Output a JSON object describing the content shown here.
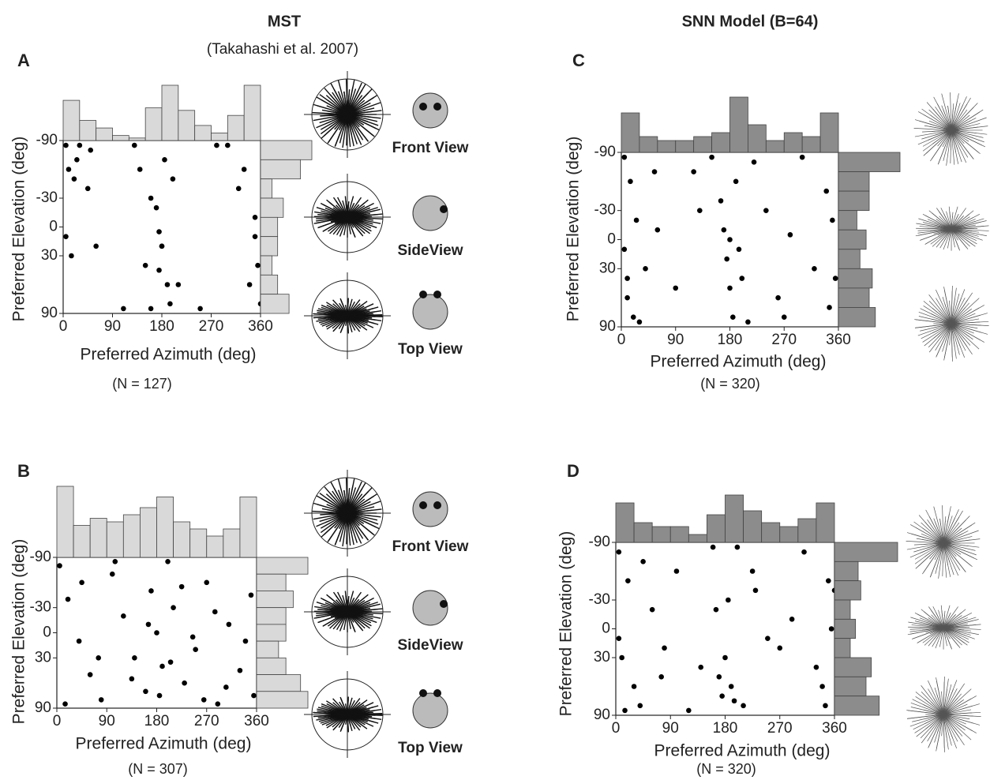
{
  "column_titles": [
    {
      "title": "MST",
      "subtitle": "(Takahashi et al. 2007)"
    },
    {
      "title": "SNN Model (B=64)"
    }
  ],
  "chart_data": [
    {
      "type": "scatter",
      "letter": "A",
      "xlabel": "Preferred Azimuth (deg)",
      "ylabel": "Preferred Elevation (deg)",
      "n_label": "(N = 127)",
      "xlim": [
        0,
        360
      ],
      "ylim": [
        -90,
        90
      ],
      "xticks": [
        0,
        90,
        180,
        270,
        360
      ],
      "yticks": [
        -90,
        -30,
        0,
        30,
        90
      ],
      "x": [
        5,
        10,
        20,
        25,
        30,
        45,
        50,
        5,
        15,
        130,
        140,
        150,
        160,
        170,
        175,
        180,
        185,
        190,
        195,
        200,
        160,
        175,
        180,
        300,
        320,
        330,
        350,
        355,
        360,
        340,
        280,
        250,
        210,
        110,
        60,
        350
      ],
      "y": [
        -85,
        -60,
        -50,
        -70,
        -85,
        -40,
        -80,
        10,
        30,
        -85,
        -60,
        40,
        -30,
        -20,
        5,
        20,
        -70,
        60,
        80,
        -50,
        85,
        45,
        20,
        -85,
        -40,
        -60,
        10,
        40,
        80,
        60,
        -85,
        85,
        60,
        85,
        20,
        -10
      ],
      "azimuth_counts": [
        16,
        8,
        5,
        2,
        1,
        13,
        22,
        12,
        6,
        3,
        10,
        22
      ],
      "elevation_counts": [
        18,
        14,
        4,
        8,
        6,
        6,
        4,
        6,
        10
      ],
      "color": "#000000",
      "hist_color": "#d9d9d9",
      "view_labels": [
        "Front View",
        "SideView",
        "Top View"
      ]
    },
    {
      "type": "scatter",
      "letter": "B",
      "xlabel": "Preferred Azimuth (deg)",
      "ylabel": "Preferred Elevation (deg)",
      "n_label": "(N = 307)",
      "xlim": [
        0,
        360
      ],
      "ylim": [
        -90,
        90
      ],
      "xticks": [
        0,
        90,
        180,
        270,
        360
      ],
      "yticks": [
        -90,
        -30,
        0,
        30,
        90
      ],
      "x": [
        5,
        20,
        40,
        60,
        80,
        100,
        120,
        140,
        160,
        170,
        180,
        190,
        200,
        210,
        230,
        250,
        270,
        290,
        310,
        330,
        350,
        355,
        15,
        45,
        75,
        105,
        135,
        165,
        185,
        205,
        225,
        245,
        265,
        285,
        305,
        340
      ],
      "y": [
        -80,
        -40,
        10,
        50,
        80,
        -70,
        -20,
        30,
        70,
        -50,
        0,
        40,
        -85,
        -30,
        60,
        20,
        -60,
        85,
        -10,
        45,
        -45,
        75,
        85,
        -60,
        30,
        -85,
        55,
        -10,
        75,
        35,
        -55,
        5,
        80,
        -25,
        65,
        10
      ],
      "azimuth_counts": [
        20,
        9,
        11,
        10,
        12,
        14,
        17,
        10,
        8,
        6,
        8,
        17
      ],
      "elevation_counts": [
        14,
        8,
        10,
        8,
        8,
        6,
        8,
        12,
        14
      ],
      "color": "#000000",
      "hist_color": "#d9d9d9",
      "view_labels": [
        "Front View",
        "SideView",
        "Top View"
      ]
    },
    {
      "type": "scatter",
      "letter": "C",
      "xlabel": "Preferred Azimuth (deg)",
      "ylabel": "Preferred Elevation (deg)",
      "n_label": "(N = 320)",
      "xlim": [
        0,
        360
      ],
      "ylim": [
        -90,
        90
      ],
      "xticks": [
        0,
        90,
        180,
        270,
        360
      ],
      "yticks": [
        -90,
        -30,
        0,
        30,
        90
      ],
      "x": [
        5,
        15,
        25,
        40,
        10,
        20,
        30,
        60,
        90,
        120,
        150,
        165,
        170,
        175,
        180,
        185,
        190,
        195,
        200,
        210,
        240,
        260,
        280,
        300,
        320,
        340,
        350,
        355,
        345,
        5,
        10,
        130,
        220,
        270,
        55,
        180
      ],
      "y": [
        -85,
        -60,
        -20,
        30,
        60,
        80,
        85,
        -10,
        50,
        -70,
        -85,
        -40,
        -10,
        20,
        50,
        80,
        -60,
        10,
        40,
        85,
        -30,
        60,
        -5,
        -85,
        30,
        -50,
        -20,
        40,
        70,
        10,
        40,
        -30,
        -80,
        80,
        -70,
        0
      ],
      "azimuth_counts": [
        10,
        4,
        3,
        3,
        4,
        5,
        14,
        7,
        3,
        5,
        4,
        10
      ],
      "elevation_counts": [
        20,
        10,
        10,
        6,
        9,
        7,
        11,
        10,
        12
      ],
      "color": "#000000",
      "hist_color": "#8c8c8c"
    },
    {
      "type": "scatter",
      "letter": "D",
      "xlabel": "Preferred Azimuth (deg)",
      "ylabel": "Preferred Elevation (deg)",
      "n_label": "(N = 320)",
      "xlim": [
        0,
        360
      ],
      "ylim": [
        -90,
        90
      ],
      "xticks": [
        0,
        90,
        180,
        270,
        360
      ],
      "yticks": [
        -90,
        -30,
        0,
        30,
        90
      ],
      "x": [
        5,
        10,
        20,
        30,
        40,
        60,
        80,
        100,
        120,
        140,
        160,
        170,
        175,
        180,
        185,
        190,
        200,
        210,
        230,
        250,
        270,
        290,
        310,
        330,
        340,
        350,
        355,
        15,
        45,
        75,
        165,
        195,
        225,
        345,
        5,
        360
      ],
      "y": [
        -80,
        30,
        -50,
        60,
        80,
        -20,
        20,
        -60,
        85,
        40,
        -85,
        50,
        70,
        30,
        -30,
        60,
        -85,
        80,
        -40,
        10,
        20,
        -10,
        -80,
        40,
        60,
        -50,
        0,
        85,
        -70,
        50,
        -20,
        75,
        -60,
        80,
        10,
        -40
      ],
      "azimuth_counts": [
        10,
        5,
        4,
        4,
        2,
        7,
        12,
        8,
        5,
        4,
        6,
        10
      ],
      "elevation_counts": [
        24,
        9,
        10,
        6,
        8,
        6,
        14,
        12,
        17
      ],
      "color": "#000000",
      "hist_color": "#8c8c8c"
    }
  ]
}
